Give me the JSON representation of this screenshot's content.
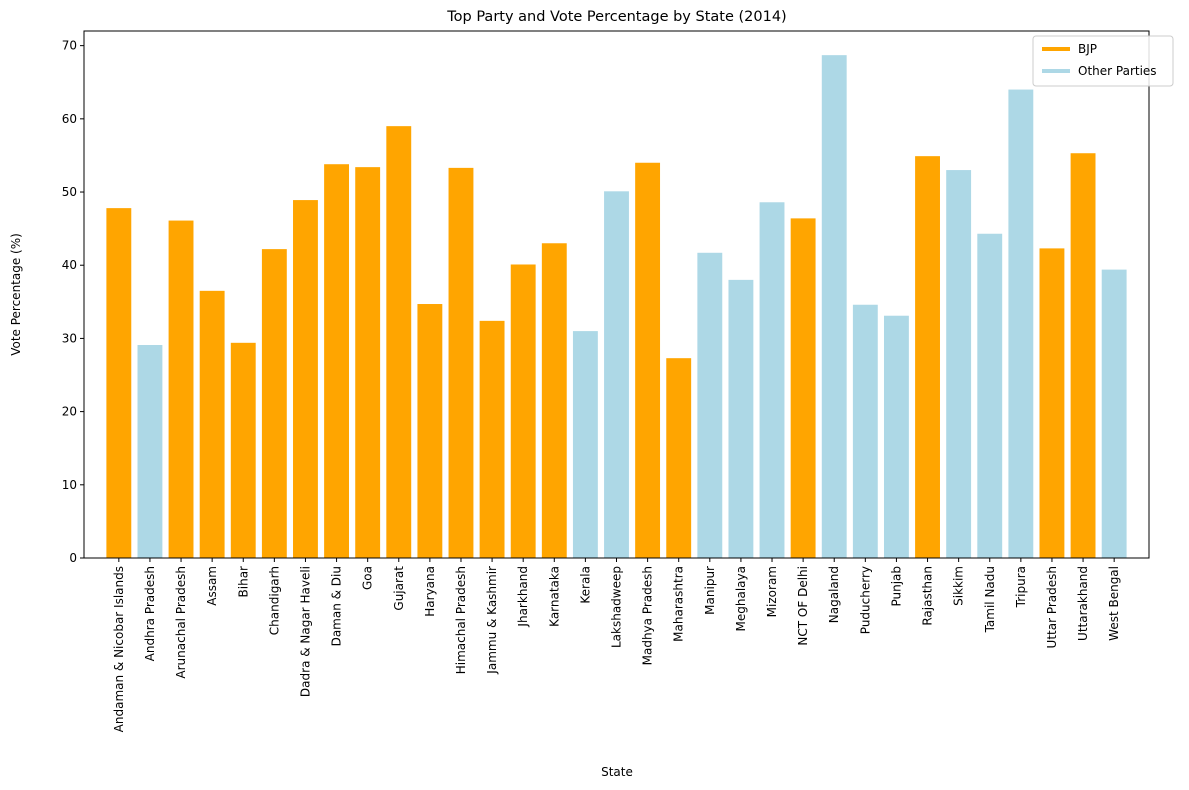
{
  "chart_data": {
    "type": "bar",
    "title": "Top Party and Vote Percentage by State (2014)",
    "xlabel": "State",
    "ylabel": "Vote Percentage (%)",
    "ylim": [
      0,
      72
    ],
    "yticks": [
      0,
      10,
      20,
      30,
      40,
      50,
      60,
      70
    ],
    "grid": false,
    "legend_position": "top-right",
    "legend": [
      {
        "label": "BJP",
        "color": "#FFA500"
      },
      {
        "label": "Other Parties",
        "color": "#ADD8E6"
      }
    ],
    "categories": [
      "Andaman & Nicobar Islands",
      "Andhra Pradesh",
      "Arunachal Pradesh",
      "Assam",
      "Bihar",
      "Chandigarh",
      "Dadra & Nagar Haveli",
      "Daman & Diu",
      "Goa",
      "Gujarat",
      "Haryana",
      "Himachal Pradesh",
      "Jammu & Kashmir",
      "Jharkhand",
      "Karnataka",
      "Kerala",
      "Lakshadweep",
      "Madhya Pradesh",
      "Maharashtra",
      "Manipur",
      "Meghalaya",
      "Mizoram",
      "NCT OF Delhi",
      "Nagaland",
      "Puducherry",
      "Punjab",
      "Rajasthan",
      "Sikkim",
      "Tamil Nadu",
      "Tripura",
      "Uttar Pradesh",
      "Uttarakhand",
      "West Bengal"
    ],
    "values": [
      47.8,
      29.1,
      46.1,
      36.5,
      29.4,
      42.2,
      48.9,
      53.8,
      53.4,
      59.0,
      34.7,
      53.3,
      32.4,
      40.1,
      43.0,
      31.0,
      50.1,
      54.0,
      27.3,
      41.7,
      38.0,
      48.6,
      46.4,
      68.7,
      34.6,
      33.1,
      54.9,
      53.0,
      44.3,
      64.0,
      42.3,
      55.3,
      39.4
    ],
    "party": [
      "BJP",
      "Other Parties",
      "BJP",
      "BJP",
      "BJP",
      "BJP",
      "BJP",
      "BJP",
      "BJP",
      "BJP",
      "BJP",
      "BJP",
      "BJP",
      "BJP",
      "BJP",
      "Other Parties",
      "Other Parties",
      "BJP",
      "BJP",
      "Other Parties",
      "Other Parties",
      "Other Parties",
      "BJP",
      "Other Parties",
      "Other Parties",
      "Other Parties",
      "BJP",
      "Other Parties",
      "Other Parties",
      "Other Parties",
      "BJP",
      "BJP",
      "Other Parties"
    ],
    "colors": {
      "BJP": "#FFA500",
      "Other Parties": "#ADD8E6"
    }
  }
}
